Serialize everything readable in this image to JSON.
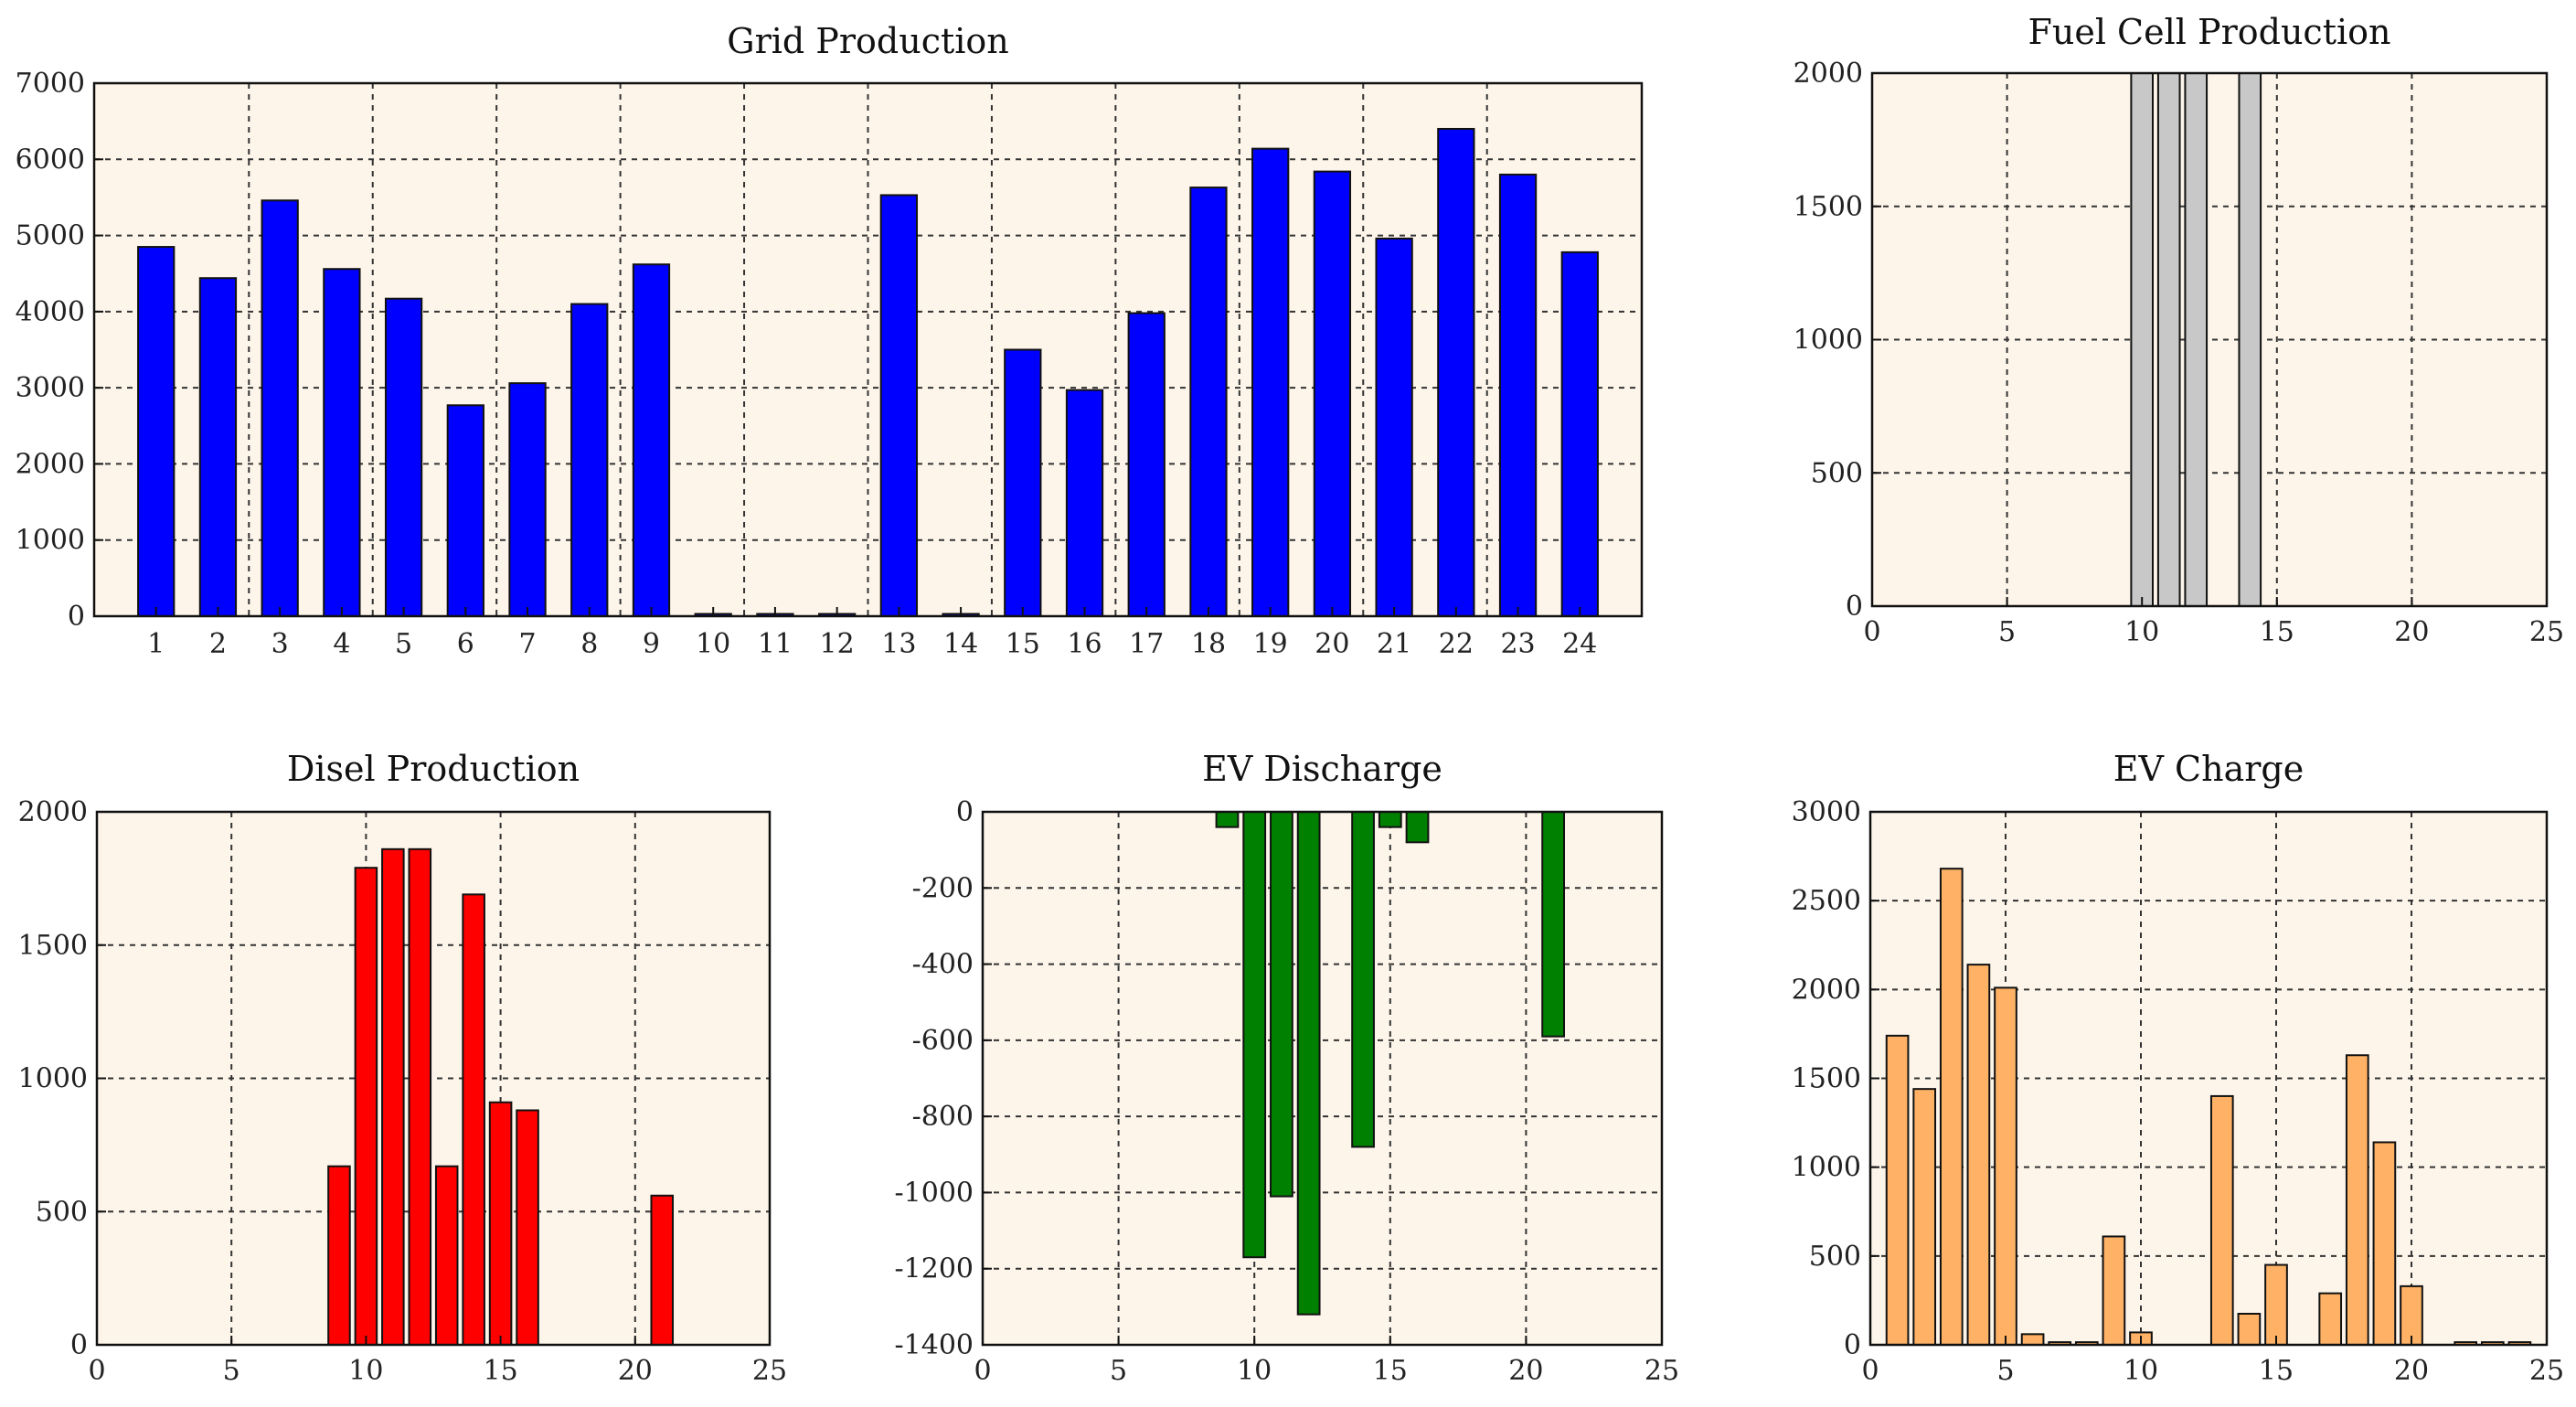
{
  "chart_data": [
    {
      "id": "grid",
      "type": "bar",
      "title": "Grid Production",
      "x_mode": "categorical",
      "categories": [
        "1",
        "2",
        "3",
        "4",
        "5",
        "6",
        "7",
        "8",
        "9",
        "10",
        "11",
        "12",
        "13",
        "14",
        "15",
        "16",
        "17",
        "18",
        "19",
        "20",
        "21",
        "22",
        "23",
        "24"
      ],
      "values": [
        4850,
        4440,
        5460,
        4560,
        4170,
        2770,
        3060,
        4100,
        4620,
        30,
        30,
        30,
        5530,
        30,
        3500,
        2970,
        3980,
        5630,
        6140,
        5840,
        4960,
        6400,
        5800,
        4780
      ],
      "ylim": [
        0,
        7000
      ],
      "yticks": [
        0,
        1000,
        2000,
        3000,
        4000,
        5000,
        6000,
        7000
      ],
      "ytick_labels": [
        "0",
        "1000",
        "2000",
        "3000",
        "4000",
        "5000",
        "6000",
        "7000"
      ],
      "xlabel": "",
      "ylabel": "",
      "grid": true,
      "color": "#0000ff",
      "background": "#fdf5ea"
    },
    {
      "id": "fuel",
      "type": "bar",
      "title": "Fuel Cell Production",
      "x_mode": "numeric",
      "x": [
        10,
        11,
        12,
        14
      ],
      "values": [
        2000,
        2000,
        2000,
        2000
      ],
      "xlim": [
        0,
        25
      ],
      "xticks": [
        0,
        5,
        10,
        15,
        20,
        25
      ],
      "xtick_labels": [
        "0",
        "5",
        "10",
        "15",
        "20",
        "25"
      ],
      "ylim": [
        0,
        2000
      ],
      "yticks": [
        0,
        500,
        1000,
        1500,
        2000
      ],
      "ytick_labels": [
        "0",
        "500",
        "1000",
        "1500",
        "2000"
      ],
      "xlabel": "",
      "ylabel": "",
      "grid": true,
      "color": "#c8c8c8",
      "background": "#fdf5ea"
    },
    {
      "id": "diesel",
      "type": "bar",
      "title": "Disel Production",
      "x_mode": "numeric",
      "x": [
        9,
        10,
        11,
        12,
        13,
        14,
        15,
        16,
        21
      ],
      "values": [
        670,
        1790,
        1860,
        1860,
        670,
        1690,
        910,
        880,
        560
      ],
      "xlim": [
        0,
        25
      ],
      "xticks": [
        0,
        5,
        10,
        15,
        20,
        25
      ],
      "xtick_labels": [
        "0",
        "5",
        "10",
        "15",
        "20",
        "25"
      ],
      "ylim": [
        0,
        2000
      ],
      "yticks": [
        0,
        500,
        1000,
        1500,
        2000
      ],
      "ytick_labels": [
        "0",
        "500",
        "1000",
        "1500",
        "2000"
      ],
      "xlabel": "",
      "ylabel": "",
      "grid": true,
      "color": "#ff0000",
      "background": "#fdf5ea"
    },
    {
      "id": "evdis",
      "type": "bar",
      "title": "EV Discharge",
      "x_mode": "numeric",
      "x": [
        9,
        10,
        11,
        12,
        14,
        15,
        16,
        21
      ],
      "values": [
        -40,
        -1170,
        -1010,
        -1320,
        -880,
        -40,
        -80,
        -590
      ],
      "xlim": [
        0,
        25
      ],
      "xticks": [
        0,
        5,
        10,
        15,
        20,
        25
      ],
      "xtick_labels": [
        "0",
        "5",
        "10",
        "15",
        "20",
        "25"
      ],
      "ylim": [
        -1400,
        0
      ],
      "yticks": [
        -1400,
        -1200,
        -1000,
        -800,
        -600,
        -400,
        -200,
        0
      ],
      "ytick_labels": [
        "-1400",
        "-1200",
        "-1000",
        "-800",
        "-600",
        "-400",
        "-200",
        "0"
      ],
      "xlabel": "",
      "ylabel": "",
      "grid": true,
      "color": "#008000",
      "background": "#fdf5ea"
    },
    {
      "id": "evchg",
      "type": "bar",
      "title": "EV Charge",
      "x_mode": "numeric",
      "x": [
        1,
        2,
        3,
        4,
        5,
        6,
        7,
        8,
        9,
        10,
        13,
        14,
        15,
        17,
        18,
        19,
        20,
        22,
        23,
        24
      ],
      "values": [
        1740,
        1440,
        2680,
        2140,
        2010,
        60,
        15,
        15,
        610,
        70,
        1400,
        175,
        450,
        290,
        1630,
        1140,
        330,
        15,
        15,
        15
      ],
      "xlim": [
        0,
        25
      ],
      "xticks": [
        0,
        5,
        10,
        15,
        20,
        25
      ],
      "xtick_labels": [
        "0",
        "5",
        "10",
        "15",
        "20",
        "25"
      ],
      "ylim": [
        0,
        3000
      ],
      "yticks": [
        0,
        500,
        1000,
        1500,
        2000,
        2500,
        3000
      ],
      "ytick_labels": [
        "0",
        "500",
        "1000",
        "1500",
        "2000",
        "2500",
        "3000"
      ],
      "xlabel": "",
      "ylabel": "",
      "grid": true,
      "color": "#ffb266",
      "background": "#fdf5ea"
    }
  ]
}
